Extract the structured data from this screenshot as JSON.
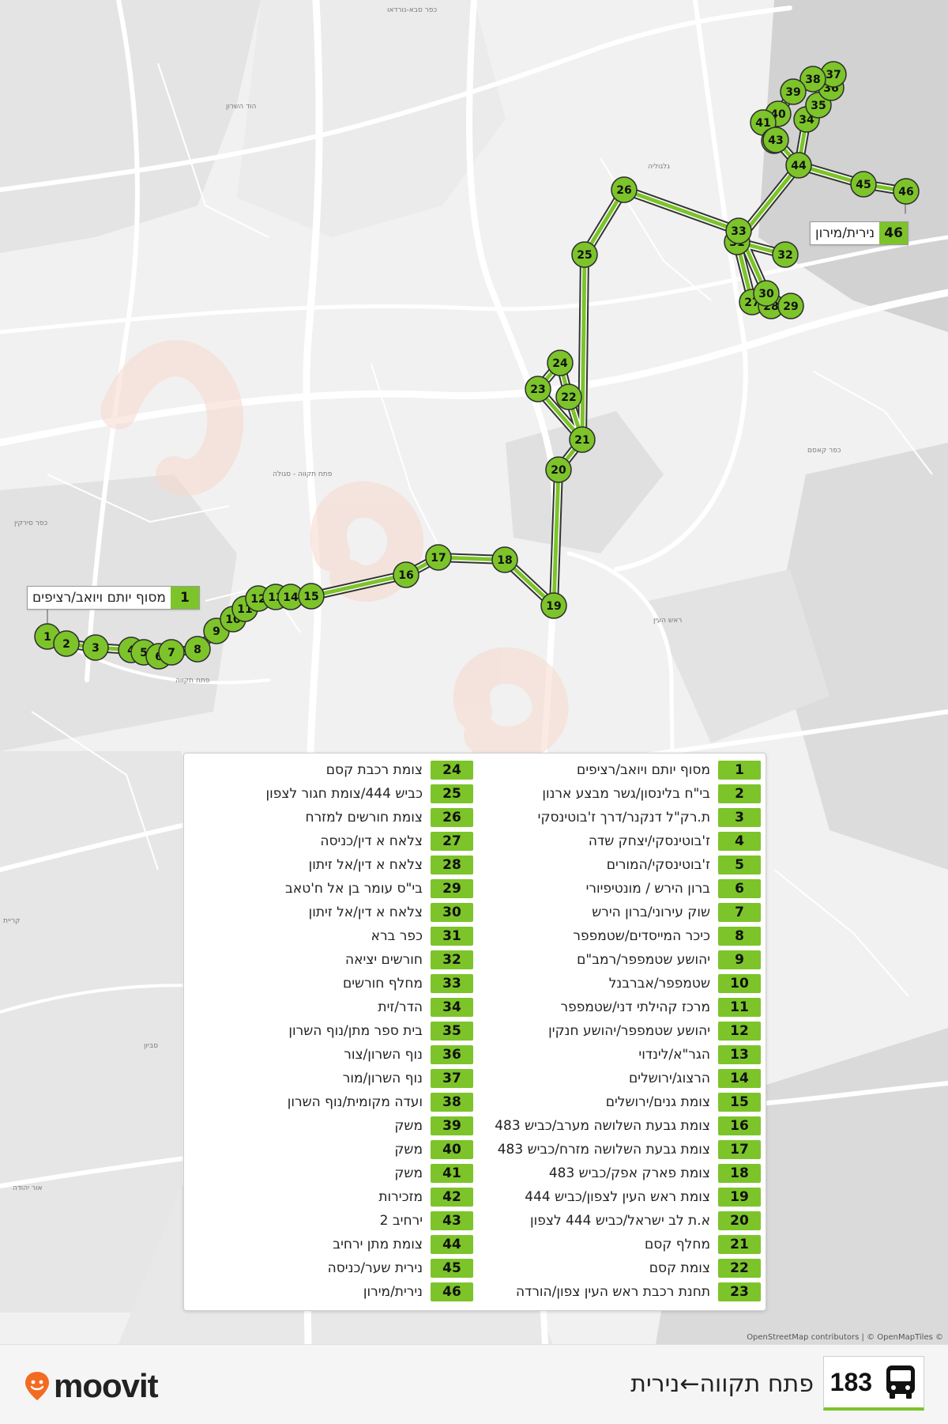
{
  "map": {
    "place_labels": [
      "כפר סבא-נורדאו",
      "הוד השרון",
      "גלגוליה",
      "כפר קאסם",
      "פתח תקווה",
      "ראש העין",
      "סביון",
      "אור יהודה",
      "פתח תקווה - סגולה",
      "כפר סירקין",
      "קריית"
    ],
    "start_label": {
      "number": "1",
      "text": "מסוף יותם ויואב/רציפים"
    },
    "end_label": {
      "number": "46",
      "text": "נירית/מירון"
    },
    "attribution": "OpenStreetMap contributors | © OpenMapTiles ©",
    "markers": [
      "1",
      "2",
      "3",
      "4",
      "5",
      "6",
      "7",
      "8",
      "9",
      "10",
      "11",
      "12",
      "13",
      "14",
      "15",
      "16",
      "17",
      "18",
      "19",
      "20",
      "21",
      "22",
      "23",
      "24",
      "25",
      "26",
      "27",
      "28",
      "29",
      "30",
      "31",
      "32",
      "33",
      "34",
      "35",
      "36",
      "37",
      "38",
      "39",
      "40",
      "41",
      "42",
      "43",
      "44",
      "45",
      "46"
    ]
  },
  "legend": {
    "left_column": [
      {
        "num": "1",
        "name": "מסוף יותם ויואב/רציפים"
      },
      {
        "num": "2",
        "name": "בי\"ח בלינסון/גשר מבצע ארנון"
      },
      {
        "num": "3",
        "name": "ת.רק\"ל דנקנר/דרך ז'בוטינסקי"
      },
      {
        "num": "4",
        "name": "ז'בוטינסקי/יצחק שדה"
      },
      {
        "num": "5",
        "name": "ז'בוטינסקי/המורים"
      },
      {
        "num": "6",
        "name": "ברון הירש / מונטיפיורי"
      },
      {
        "num": "7",
        "name": "שוק עירוני/ברון הירש"
      },
      {
        "num": "8",
        "name": "כיכר המייסדים/שטמפפר"
      },
      {
        "num": "9",
        "name": "יהושע שטמפפר/רמב\"ם"
      },
      {
        "num": "10",
        "name": "שטמפפר/אברבנל"
      },
      {
        "num": "11",
        "name": "מרכז קהילתי דני/שטמפפר"
      },
      {
        "num": "12",
        "name": "יהושע שטמפפר/יהושע חנקין"
      },
      {
        "num": "13",
        "name": "הגר\"א/לינדוי"
      },
      {
        "num": "14",
        "name": "הרצוג/ירושלים"
      },
      {
        "num": "15",
        "name": "צומת גנים/ירושלים"
      },
      {
        "num": "16",
        "name": "צומת גבעת השלושה מערב/כביש 483"
      },
      {
        "num": "17",
        "name": "צומת גבעת השלושה מזרח/כביש 483"
      },
      {
        "num": "18",
        "name": "צומת פארק אפק/כביש 483"
      },
      {
        "num": "19",
        "name": "צומת ראש העין לצפון/כביש 444"
      },
      {
        "num": "20",
        "name": "א.ת לב ישראל/כביש 444 לצפון"
      },
      {
        "num": "21",
        "name": "מחלף קסם"
      },
      {
        "num": "22",
        "name": "צומת קסם"
      },
      {
        "num": "23",
        "name": "תחנת רכבת ראש העין צפון/הורדה"
      }
    ],
    "right_column": [
      {
        "num": "24",
        "name": "צומת רכבת קסם"
      },
      {
        "num": "25",
        "name": "כביש 444/צומת חגור לצפון"
      },
      {
        "num": "26",
        "name": "צומת חורשים למזרח"
      },
      {
        "num": "27",
        "name": "צלאח א דין/כניסה"
      },
      {
        "num": "28",
        "name": "צלאח א דין/אל זיתון"
      },
      {
        "num": "29",
        "name": "בי\"ס עומר בן אל ח'טאב"
      },
      {
        "num": "30",
        "name": "צלאח א דין/אל זיתון"
      },
      {
        "num": "31",
        "name": "כפר ברא"
      },
      {
        "num": "32",
        "name": "חורשים יציאה"
      },
      {
        "num": "33",
        "name": "מחלף חורשים"
      },
      {
        "num": "34",
        "name": "הדר/זית"
      },
      {
        "num": "35",
        "name": "בית ספר מתן/נוף השרון"
      },
      {
        "num": "36",
        "name": "נוף השרון/צור"
      },
      {
        "num": "37",
        "name": "נוף השרון/מור"
      },
      {
        "num": "38",
        "name": "ועדה מקומית/נוף השרון"
      },
      {
        "num": "39",
        "name": "משק"
      },
      {
        "num": "40",
        "name": "משק"
      },
      {
        "num": "41",
        "name": "משק"
      },
      {
        "num": "42",
        "name": "מזכירות"
      },
      {
        "num": "43",
        "name": "ירחיב 2"
      },
      {
        "num": "44",
        "name": "צומת מתן ירחיב"
      },
      {
        "num": "45",
        "name": "נירית שער/כניסה"
      },
      {
        "num": "46",
        "name": "נירית/מירון"
      }
    ]
  },
  "footer": {
    "brand": "moovit",
    "route_number": "183",
    "route_title": "פתח תקווה←נירית"
  },
  "colors": {
    "route_green": "#7cc42a",
    "route_outline": "#333333",
    "map_bg": "#f1f1f1",
    "brand_orange": "#f26b21"
  }
}
